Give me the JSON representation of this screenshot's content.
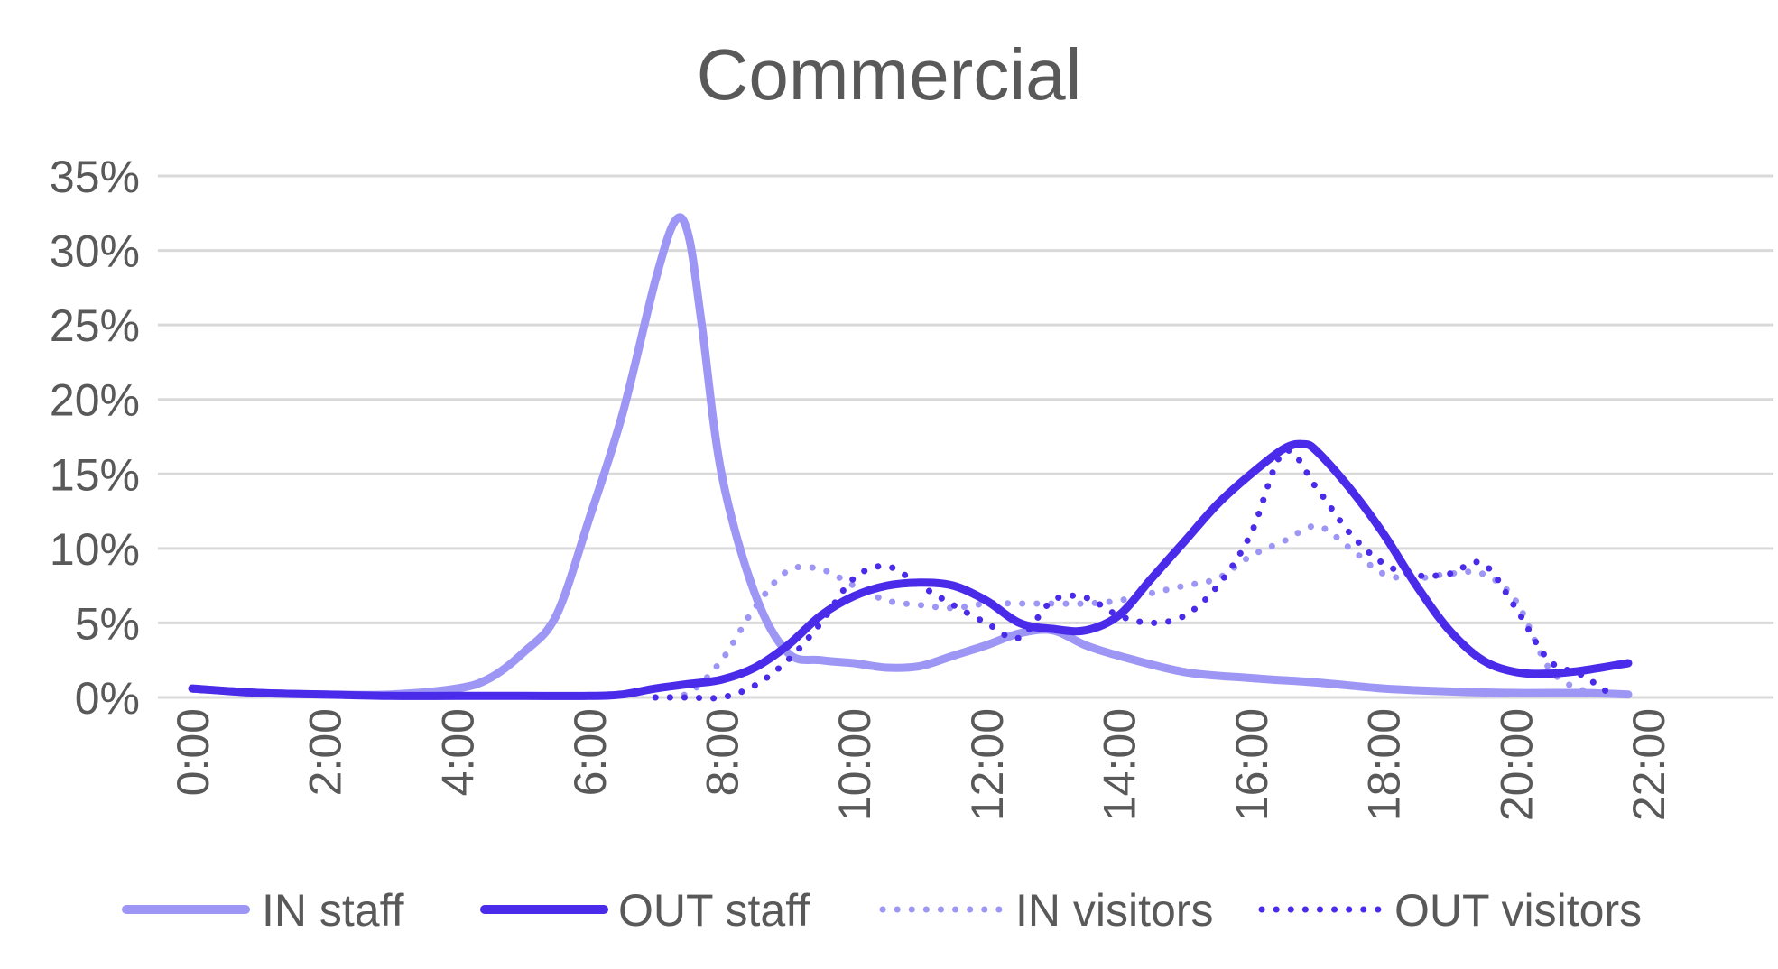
{
  "chart_data": {
    "type": "line",
    "title": "Commercial",
    "xlabel": "",
    "ylabel": "",
    "ylim": [
      0,
      35
    ],
    "xlim": [
      0,
      22
    ],
    "yticks": [
      0,
      5,
      10,
      15,
      20,
      25,
      30,
      35
    ],
    "ytick_labels": [
      "0%",
      "5%",
      "10%",
      "15%",
      "20%",
      "25%",
      "30%",
      "35%"
    ],
    "xticks": [
      0,
      2,
      4,
      6,
      8,
      10,
      12,
      14,
      16,
      18,
      20,
      22
    ],
    "xtick_labels": [
      "0:00",
      "2:00",
      "4:00",
      "6:00",
      "8:00",
      "10:00",
      "12:00",
      "14:00",
      "16:00",
      "18:00",
      "20:00",
      "22:00"
    ],
    "x_unit": "hour",
    "grid": true,
    "legend_position": "bottom",
    "series": [
      {
        "name": "IN staff",
        "color": "#9d96f5",
        "style": "solid",
        "x": [
          0,
          1,
          2,
          3,
          4,
          4.5,
          5,
          5.5,
          6,
          6.5,
          7,
          7.3,
          7.5,
          7.7,
          8,
          8.5,
          9,
          9.5,
          10,
          10.5,
          11,
          11.5,
          12,
          12.5,
          13,
          13.5,
          14,
          15,
          16,
          17,
          18,
          19,
          20,
          21,
          21.7
        ],
        "y": [
          0.6,
          0.3,
          0.2,
          0.2,
          0.6,
          1.3,
          3,
          5.5,
          12,
          19,
          28,
          32,
          31,
          25,
          15,
          7,
          3,
          2.5,
          2.3,
          2.0,
          2.1,
          2.8,
          3.5,
          4.3,
          4.5,
          3.5,
          2.8,
          1.7,
          1.3,
          1.0,
          0.6,
          0.4,
          0.3,
          0.3,
          0.2
        ]
      },
      {
        "name": "OUT staff",
        "color": "#4a2bea",
        "style": "solid",
        "x": [
          0,
          1,
          2,
          3,
          4,
          5,
          6,
          6.5,
          7,
          7.5,
          8,
          8.5,
          9,
          9.5,
          10,
          10.5,
          11,
          11.5,
          12,
          12.5,
          13,
          13.5,
          14,
          14.5,
          15,
          15.5,
          16,
          16.5,
          16.8,
          17,
          17.5,
          18,
          18.5,
          19,
          19.5,
          20,
          20.5,
          21,
          21.7
        ],
        "y": [
          0.6,
          0.3,
          0.2,
          0.1,
          0.1,
          0.1,
          0.1,
          0.2,
          0.6,
          0.9,
          1.2,
          2,
          3.5,
          5.5,
          6.8,
          7.5,
          7.7,
          7.5,
          6.5,
          5,
          4.6,
          4.5,
          5.5,
          8,
          10.5,
          13,
          15,
          16.7,
          17,
          16.5,
          14,
          11,
          7.5,
          4.5,
          2.5,
          1.7,
          1.6,
          1.8,
          2.3
        ]
      },
      {
        "name": "IN visitors",
        "color": "#9d96f5",
        "style": "dotted",
        "x": [
          7,
          7.5,
          8,
          8.5,
          9,
          9.5,
          10,
          10.5,
          11,
          11.5,
          12,
          12.5,
          13,
          13.5,
          14,
          14.5,
          15,
          15.5,
          16,
          16.5,
          17,
          17.5,
          18,
          18.5,
          19,
          19.5,
          20,
          20.5,
          21,
          21.5
        ],
        "y": [
          0,
          0.3,
          2.5,
          6,
          8.5,
          8.6,
          7.5,
          6.5,
          6.2,
          6.0,
          6.3,
          6.3,
          6.3,
          6.3,
          6.5,
          7.0,
          7.5,
          8.0,
          9.5,
          10.5,
          11.5,
          10,
          8.3,
          8.0,
          8.3,
          8.3,
          6.5,
          2,
          0.5,
          0.2
        ]
      },
      {
        "name": "OUT visitors",
        "color": "#4a2bea",
        "style": "dotted",
        "x": [
          7,
          7.5,
          8,
          8.5,
          9,
          9.5,
          10,
          10.5,
          11,
          11.5,
          12,
          12.5,
          13,
          13.5,
          14,
          14.5,
          15,
          15.5,
          16,
          16.5,
          17,
          17.5,
          18,
          18.5,
          19,
          19.5,
          20,
          20.5,
          21,
          21.5
        ],
        "y": [
          0,
          0,
          0,
          0.8,
          2.5,
          5,
          8,
          8.8,
          7.5,
          6.2,
          5,
          4.0,
          6.5,
          6.7,
          5.5,
          5.0,
          5.5,
          7.5,
          11,
          16.5,
          14,
          11,
          9,
          8.2,
          8.3,
          9.0,
          6,
          2.5,
          1.5,
          0
        ]
      }
    ]
  }
}
